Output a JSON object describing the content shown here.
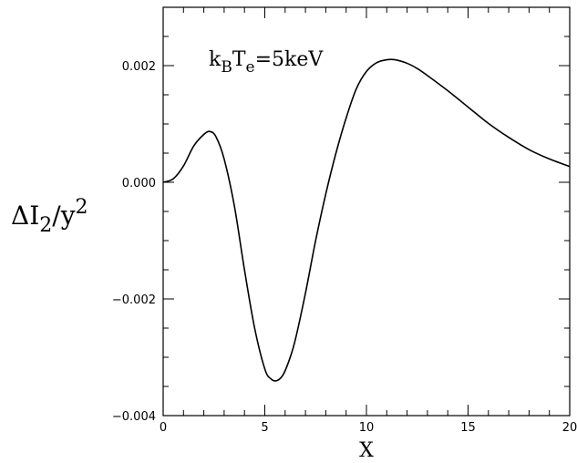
{
  "chart_data": {
    "type": "line",
    "xlabel": "X",
    "ylabel": {
      "main": "ΔI",
      "sub": "2",
      "slash": "/y",
      "sup": "2"
    },
    "annotation": {
      "k": "k",
      "sub1": "B",
      "T": "T",
      "sub2": "e",
      "rest": "=5keV"
    },
    "xlim": [
      0,
      20
    ],
    "ylim": [
      -0.004,
      0.003
    ],
    "xticks": [
      {
        "value": 0,
        "label": "0"
      },
      {
        "value": 5,
        "label": "5"
      },
      {
        "value": 10,
        "label": "10"
      },
      {
        "value": 15,
        "label": "15"
      },
      {
        "value": 20,
        "label": "20"
      }
    ],
    "yticks": [
      {
        "value": -0.004,
        "label": "−0.004"
      },
      {
        "value": -0.002,
        "label": "−0.002"
      },
      {
        "value": 0.0,
        "label": "0.000"
      },
      {
        "value": 0.002,
        "label": "0.002"
      }
    ],
    "series": [
      {
        "x": [
          0,
          0.5,
          1.0,
          1.5,
          2.0,
          2.3,
          2.6,
          3.0,
          3.5,
          4.0,
          4.5,
          5.0,
          5.3,
          5.6,
          5.9,
          6.2,
          6.5,
          7.0,
          7.5,
          8.0,
          8.5,
          9.0,
          9.5,
          10.0,
          10.5,
          11.0,
          11.4,
          12.0,
          12.5,
          13.0,
          14.0,
          15.0,
          16.0,
          17.0,
          18.0,
          19.0,
          20.0
        ],
        "y": [
          0.0,
          6e-05,
          0.00028,
          0.00062,
          0.00082,
          0.00087,
          0.00078,
          0.0004,
          -0.0004,
          -0.0015,
          -0.0025,
          -0.0032,
          -0.00337,
          -0.0034,
          -0.0033,
          -0.00305,
          -0.0027,
          -0.0019,
          -0.001,
          -0.0002,
          0.0005,
          0.0011,
          0.0016,
          0.0019,
          0.00205,
          0.0021,
          0.0021,
          0.00204,
          0.00195,
          0.00183,
          0.00157,
          0.00129,
          0.00101,
          0.00077,
          0.00056,
          0.0004,
          0.00027
        ]
      }
    ]
  }
}
